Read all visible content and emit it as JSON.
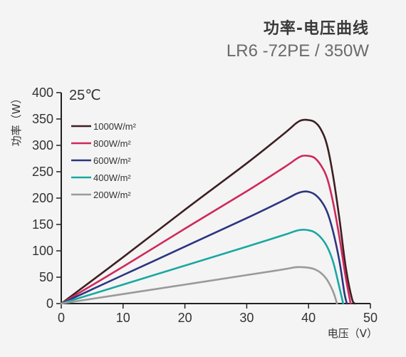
{
  "header": {
    "title": "功率-电压曲线",
    "subtitle": "LR6 -72PE / 350W"
  },
  "chart_data": {
    "type": "line",
    "annotation": "25℃",
    "xlabel": "电压（V）",
    "ylabel": "功率（W）",
    "xlim": [
      0,
      50
    ],
    "ylim": [
      0,
      400
    ],
    "xticks": [
      0,
      10,
      20,
      30,
      40,
      50
    ],
    "yticks": [
      0,
      50,
      100,
      150,
      200,
      250,
      300,
      350,
      400
    ],
    "grid": false,
    "legend_position": "top-left",
    "series": [
      {
        "name": "1000W/m²",
        "color": "#3d1f22",
        "points": [
          [
            0,
            0
          ],
          [
            10,
            88
          ],
          [
            20,
            178
          ],
          [
            30,
            266
          ],
          [
            36,
            322
          ],
          [
            38,
            342
          ],
          [
            39,
            348
          ],
          [
            40,
            348
          ],
          [
            41,
            344
          ],
          [
            42,
            330
          ],
          [
            43,
            300
          ],
          [
            44,
            240
          ],
          [
            45,
            160
          ],
          [
            46,
            70
          ],
          [
            47,
            10
          ],
          [
            47.5,
            0
          ]
        ]
      },
      {
        "name": "800W/m²",
        "color": "#d0285a",
        "points": [
          [
            0,
            0
          ],
          [
            10,
            70
          ],
          [
            20,
            142
          ],
          [
            30,
            213
          ],
          [
            36,
            258
          ],
          [
            38,
            274
          ],
          [
            39,
            280
          ],
          [
            40,
            280
          ],
          [
            41,
            276
          ],
          [
            42,
            262
          ],
          [
            43,
            238
          ],
          [
            44,
            190
          ],
          [
            45,
            125
          ],
          [
            46,
            50
          ],
          [
            46.8,
            0
          ]
        ]
      },
      {
        "name": "600W/m²",
        "color": "#2b3580",
        "points": [
          [
            0,
            0
          ],
          [
            10,
            54
          ],
          [
            20,
            108
          ],
          [
            30,
            162
          ],
          [
            36,
            196
          ],
          [
            38,
            208
          ],
          [
            39,
            212
          ],
          [
            40,
            212
          ],
          [
            41,
            207
          ],
          [
            42,
            195
          ],
          [
            43,
            174
          ],
          [
            44,
            135
          ],
          [
            45,
            80
          ],
          [
            45.8,
            20
          ],
          [
            46.2,
            0
          ]
        ]
      },
      {
        "name": "400W/m²",
        "color": "#19a8a0",
        "points": [
          [
            0,
            0
          ],
          [
            10,
            36
          ],
          [
            20,
            72
          ],
          [
            30,
            108
          ],
          [
            36,
            130
          ],
          [
            38,
            138
          ],
          [
            39,
            140
          ],
          [
            40,
            139
          ],
          [
            41,
            135
          ],
          [
            42,
            125
          ],
          [
            43,
            108
          ],
          [
            44,
            78
          ],
          [
            45,
            30
          ],
          [
            45.6,
            0
          ]
        ]
      },
      {
        "name": "200W/m²",
        "color": "#9a9a9a",
        "points": [
          [
            0,
            0
          ],
          [
            10,
            18
          ],
          [
            20,
            36
          ],
          [
            30,
            54
          ],
          [
            35,
            63
          ],
          [
            37,
            67
          ],
          [
            38,
            69
          ],
          [
            39,
            69
          ],
          [
            40,
            68
          ],
          [
            41,
            65
          ],
          [
            42,
            58
          ],
          [
            43,
            45
          ],
          [
            44,
            22
          ],
          [
            44.6,
            0
          ]
        ]
      }
    ]
  }
}
